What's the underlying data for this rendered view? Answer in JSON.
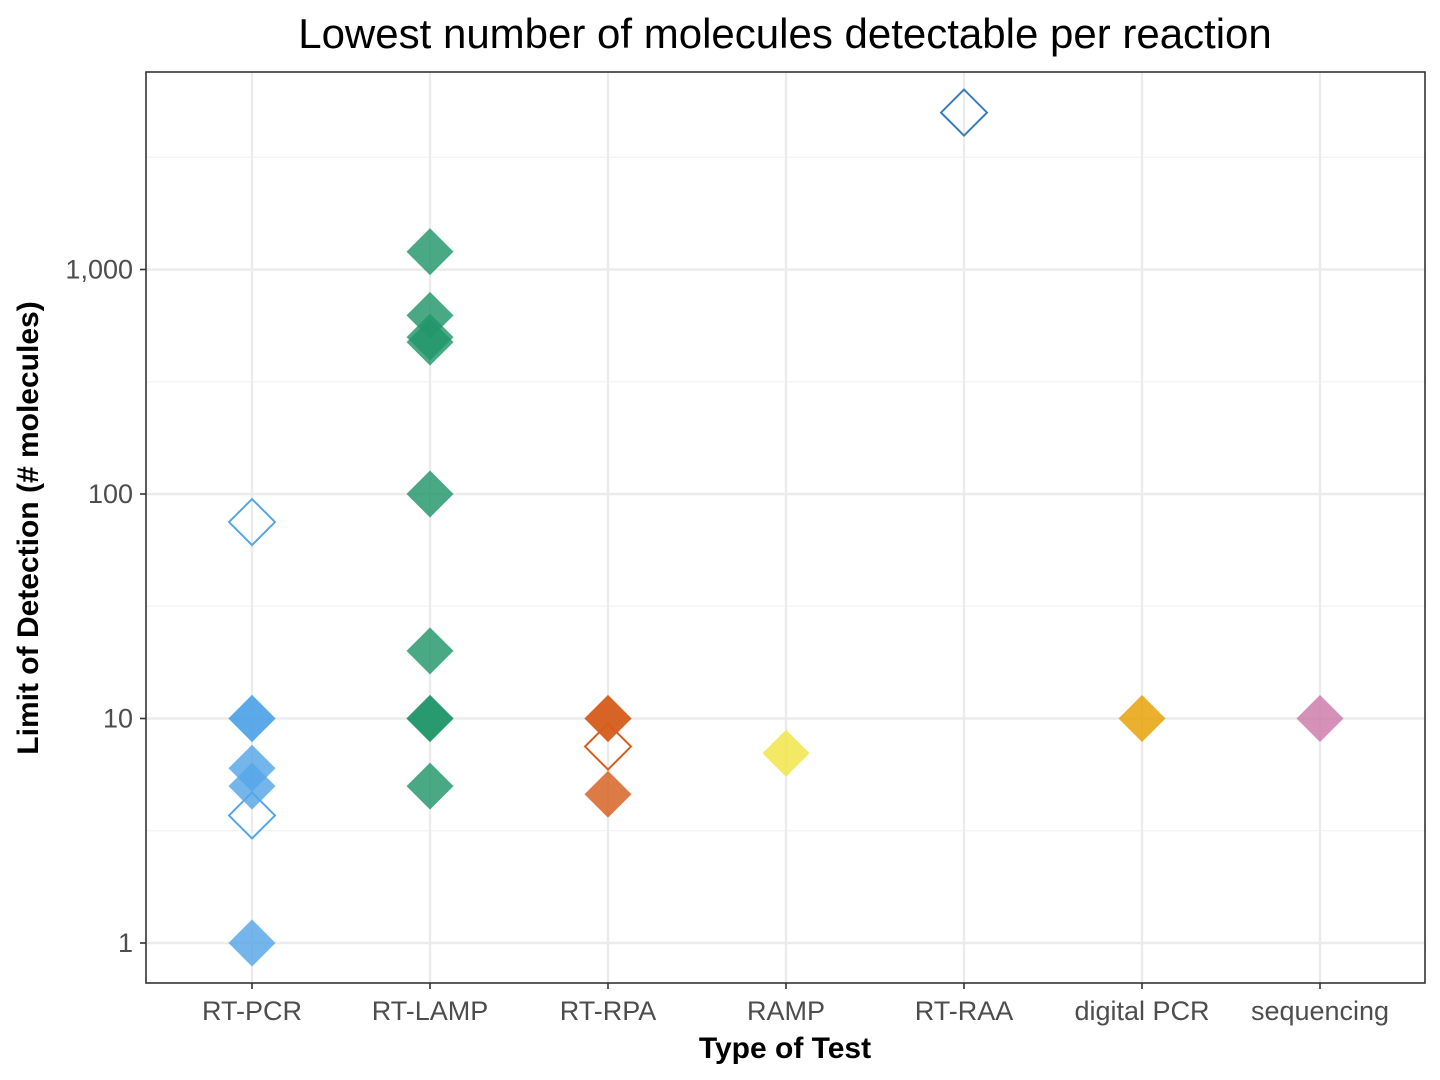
{
  "chart_data": {
    "type": "scatter",
    "title": "Lowest number of molecules detectable per reaction",
    "xlabel": "Type of Test",
    "ylabel": "Limit of Detection (# molecules)",
    "yscale": "log10",
    "ylim": [
      0.65,
      8000
    ],
    "yticks": [
      1,
      10,
      100,
      1000
    ],
    "ytick_labels": [
      "1",
      "10",
      "100",
      "1,000"
    ],
    "grid": true,
    "legend": "none",
    "categories": [
      "RT-PCR",
      "RT-LAMP",
      "RT-RPA",
      "RAMP",
      "RT-RAA",
      "digital PCR",
      "sequencing"
    ],
    "category_colors": {
      "RT-PCR": "#56a6e6",
      "RT-LAMP": "#22966a",
      "RT-RPA": "#d55e1f",
      "RAMP": "#f0e442",
      "RT-RAA": "#3b7dbb",
      "digital PCR": "#e69f00",
      "sequencing": "#cc79a7"
    },
    "points": [
      {
        "category": "RT-PCR",
        "value": 75,
        "filled": false
      },
      {
        "category": "RT-PCR",
        "value": 10,
        "filled": true
      },
      {
        "category": "RT-PCR",
        "value": 10,
        "filled": true
      },
      {
        "category": "RT-PCR",
        "value": 6,
        "filled": true
      },
      {
        "category": "RT-PCR",
        "value": 5,
        "filled": true
      },
      {
        "category": "RT-PCR",
        "value": 3.7,
        "filled": false
      },
      {
        "category": "RT-PCR",
        "value": 1,
        "filled": true
      },
      {
        "category": "RT-LAMP",
        "value": 1200,
        "filled": true
      },
      {
        "category": "RT-LAMP",
        "value": 625,
        "filled": true
      },
      {
        "category": "RT-LAMP",
        "value": 500,
        "filled": true
      },
      {
        "category": "RT-LAMP",
        "value": 475,
        "filled": true
      },
      {
        "category": "RT-LAMP",
        "value": 100,
        "filled": true
      },
      {
        "category": "RT-LAMP",
        "value": 20,
        "filled": true
      },
      {
        "category": "RT-LAMP",
        "value": 10,
        "filled": true
      },
      {
        "category": "RT-LAMP",
        "value": 10,
        "filled": true
      },
      {
        "category": "RT-LAMP",
        "value": 5,
        "filled": true
      },
      {
        "category": "RT-RPA",
        "value": 10,
        "filled": true
      },
      {
        "category": "RT-RPA",
        "value": 10,
        "filled": true
      },
      {
        "category": "RT-RPA",
        "value": 7.5,
        "filled": false
      },
      {
        "category": "RT-RPA",
        "value": 4.6,
        "filled": true
      },
      {
        "category": "RAMP",
        "value": 7,
        "filled": true
      },
      {
        "category": "RT-RAA",
        "value": 5000,
        "filled": false
      },
      {
        "category": "digital PCR",
        "value": 10,
        "filled": true
      },
      {
        "category": "sequencing",
        "value": 10,
        "filled": true
      }
    ]
  }
}
